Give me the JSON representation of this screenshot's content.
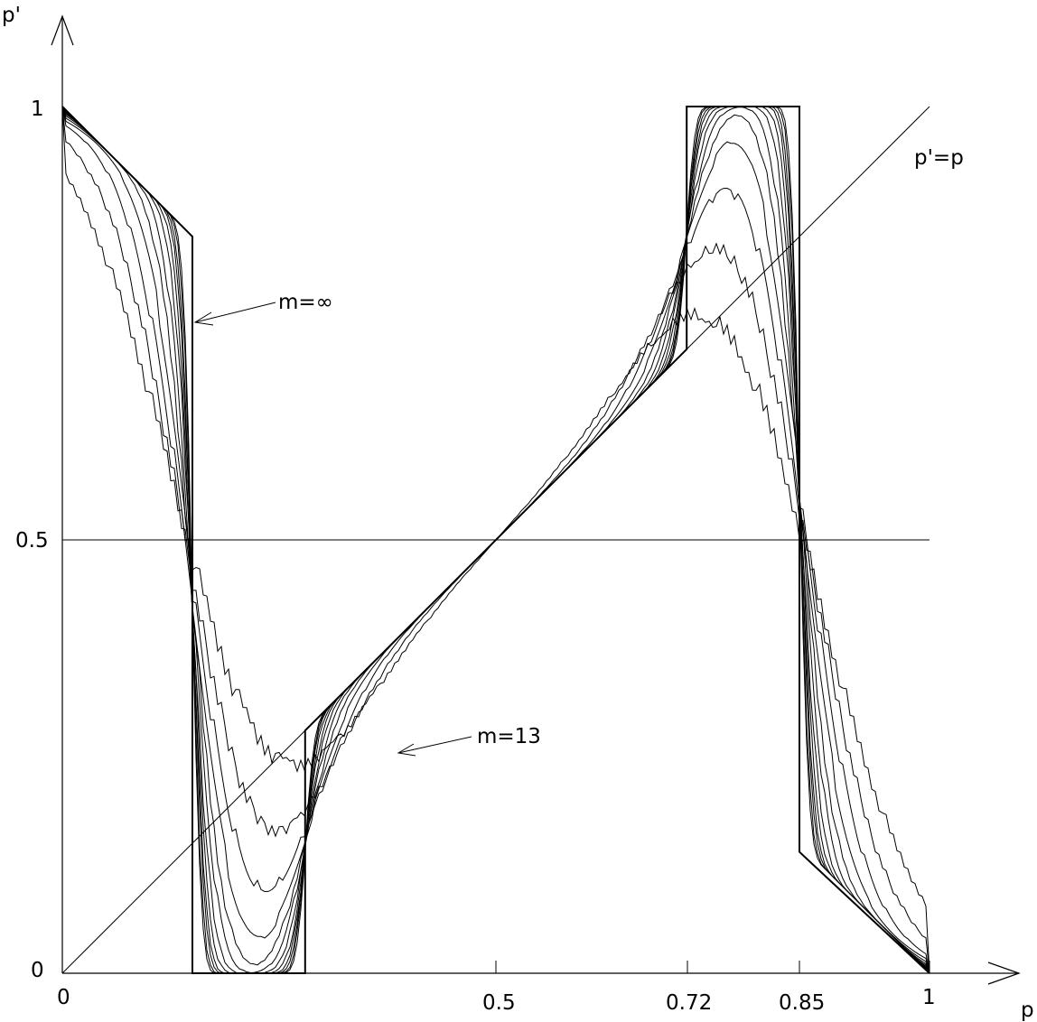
{
  "chart_data": {
    "type": "line",
    "title": "",
    "xlabel": "p",
    "ylabel": "p'",
    "xlim": [
      0,
      1
    ],
    "ylim": [
      0,
      1
    ],
    "x_ticks": [
      0,
      0.5,
      0.72,
      0.85,
      1
    ],
    "x_tick_labels": [
      "0",
      "0.5",
      "0.72",
      "0.85",
      "1"
    ],
    "y_ticks": [
      0,
      0.5,
      1
    ],
    "y_tick_labels": [
      "0",
      "0.5",
      "1"
    ],
    "grid": false,
    "legend": "none",
    "reference_lines": [
      {
        "label": "p'=p",
        "kind": "identity",
        "from": [
          0,
          0
        ],
        "to": [
          1,
          1
        ]
      },
      {
        "kind": "horizontal",
        "y": 0.5,
        "from_x": 0,
        "to_x": 1
      }
    ],
    "limit_curve": {
      "label": "m=∞",
      "points": [
        [
          0,
          1
        ],
        [
          0.15,
          0.85
        ],
        [
          0.15,
          0
        ],
        [
          0.28,
          0
        ],
        [
          0.28,
          0.28
        ],
        [
          0.72,
          0.72
        ],
        [
          0.72,
          1
        ],
        [
          0.85,
          1
        ],
        [
          0.85,
          0.14
        ],
        [
          1,
          0
        ]
      ]
    },
    "family": {
      "label": "m=13",
      "curve_count": 12,
      "note_x_at_min_of_first": 0.3,
      "sample_x": [
        0,
        0.05,
        0.1,
        0.15,
        0.2,
        0.25,
        0.3,
        0.35,
        0.4,
        0.45,
        0.5,
        0.55,
        0.6,
        0.65,
        0.7,
        0.72,
        0.75,
        0.8,
        0.85,
        0.9,
        0.95,
        1
      ]
    },
    "annotations": [
      {
        "text": "m=∞",
        "points_to": [
          0.15,
          0.75
        ]
      },
      {
        "text": "m=13",
        "points_to": [
          0.38,
          0.25
        ]
      }
    ]
  },
  "labels": {
    "y_axis": "p'",
    "x_axis": "p",
    "diag": "p'=p",
    "m_inf": "m=∞",
    "m13": "m=13",
    "xt0": "0",
    "xt05": "0.5",
    "xt072": "0.72",
    "xt085": "0.85",
    "xt1": "1",
    "yt0": "0",
    "yt05": "0.5",
    "yt1": "1"
  }
}
